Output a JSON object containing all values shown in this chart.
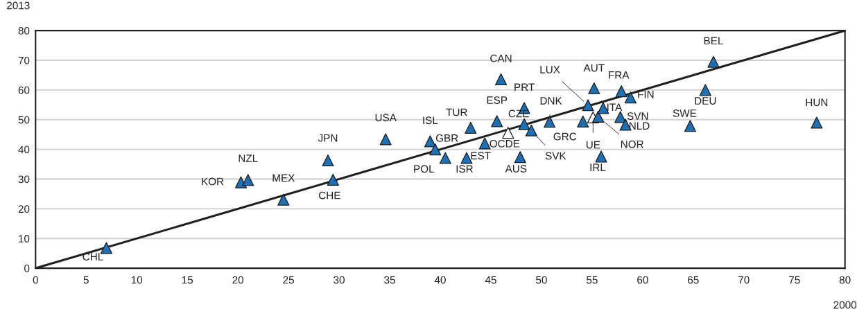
{
  "chart_data": {
    "type": "scatter",
    "xlabel": "2000",
    "ylabel": "2013",
    "xlim": [
      0,
      80
    ],
    "ylim": [
      0,
      80
    ],
    "xticks": [
      0,
      5,
      10,
      15,
      20,
      25,
      30,
      35,
      40,
      45,
      50,
      55,
      60,
      65,
      70,
      75,
      80
    ],
    "yticks": [
      0,
      10,
      20,
      30,
      40,
      50,
      60,
      70,
      80
    ],
    "grid": "y",
    "marker": "triangle",
    "series": [
      {
        "x": [
          7.0,
          20.3,
          21.0,
          24.5,
          28.9,
          29.4,
          34.6,
          39.0,
          39.5,
          40.5,
          43.0,
          45.6,
          42.6,
          44.4,
          46.7,
          47.9,
          48.3,
          48.3,
          49.0,
          50.8,
          46.0,
          54.1,
          55.1,
          55.6,
          54.6,
          56.1,
          55.2,
          57.9,
          58.8,
          57.8,
          58.3,
          55.9,
          64.7,
          66.2,
          67.0,
          77.2
        ],
        "values": [
          6.8,
          28.9,
          29.7,
          23.1,
          36.3,
          29.8,
          43.4,
          42.7,
          40.0,
          37.1,
          47.3,
          49.5,
          37.1,
          42.0,
          45.6,
          37.4,
          48.5,
          53.9,
          46.4,
          49.3,
          63.6,
          49.4,
          50.8,
          51.0,
          54.9,
          53.9,
          60.6,
          59.6,
          57.5,
          50.9,
          48.3,
          37.6,
          47.9,
          60.0,
          69.5,
          49.0
        ],
        "colors": [
          "#1f6fb4",
          "#1f6fb4",
          "#1f6fb4",
          "#1f6fb4",
          "#1f6fb4",
          "#1f6fb4",
          "#1f6fb4",
          "#1f6fb4",
          "#1f6fb4",
          "#1f6fb4",
          "#1f6fb4",
          "#1f6fb4",
          "#1f6fb4",
          "#1f6fb4",
          "#ffffff",
          "#1f6fb4",
          "#1f6fb4",
          "#1f6fb4",
          "#1f6fb4",
          "#1f6fb4",
          "#1f6fb4",
          "#1f6fb4",
          "#ffffff",
          "#1f6fb4",
          "#1f6fb4",
          "#1f6fb4",
          "#1f6fb4",
          "#1f6fb4",
          "#1f6fb4",
          "#1f6fb4",
          "#1f6fb4",
          "#1f6fb4",
          "#1f6fb4",
          "#1f6fb4",
          "#1f6fb4",
          "#1f6fb4"
        ]
      },
      {
        "type": "line",
        "color": "#231f20",
        "x": [
          0,
          80
        ],
        "values": [
          0,
          80
        ],
        "marker": "none"
      }
    ],
    "annotations": [
      {
        "text": "CHL",
        "x": 7.0,
        "y": 6.8
      },
      {
        "text": "KOR",
        "x": 20.3,
        "y": 28.9
      },
      {
        "text": "NZL",
        "x": 21.0,
        "y": 29.7
      },
      {
        "text": "MEX",
        "x": 24.5,
        "y": 23.1
      },
      {
        "text": "JPN",
        "x": 28.9,
        "y": 36.3
      },
      {
        "text": "CHE",
        "x": 29.4,
        "y": 29.8
      },
      {
        "text": "USA",
        "x": 34.6,
        "y": 43.4
      },
      {
        "text": "ISL",
        "x": 39.0,
        "y": 42.7
      },
      {
        "text": "GBR",
        "x": 39.5,
        "y": 40.0
      },
      {
        "text": "POL",
        "x": 40.5,
        "y": 37.1
      },
      {
        "text": "TUR",
        "x": 43.0,
        "y": 47.3
      },
      {
        "text": "ESP",
        "x": 45.6,
        "y": 49.5
      },
      {
        "text": "ISR",
        "x": 42.6,
        "y": 37.1
      },
      {
        "text": "EST",
        "x": 44.4,
        "y": 42.0
      },
      {
        "text": "OCDE",
        "x": 46.7,
        "y": 45.6
      },
      {
        "text": "AUS",
        "x": 47.9,
        "y": 37.4
      },
      {
        "text": "CZE",
        "x": 48.3,
        "y": 48.5
      },
      {
        "text": "PRT",
        "x": 48.3,
        "y": 53.9
      },
      {
        "text": "SVK",
        "x": 49.0,
        "y": 46.4
      },
      {
        "text": "DNK",
        "x": 50.8,
        "y": 49.3
      },
      {
        "text": "CAN",
        "x": 46.0,
        "y": 63.6
      },
      {
        "text": "GRC",
        "x": 54.1,
        "y": 49.4
      },
      {
        "text": "UE",
        "x": 55.1,
        "y": 50.8
      },
      {
        "text": "NOR",
        "x": 55.6,
        "y": 51.0
      },
      {
        "text": "LUX",
        "x": 54.6,
        "y": 54.9
      },
      {
        "text": "ITA",
        "x": 56.1,
        "y": 53.9
      },
      {
        "text": "AUT",
        "x": 55.2,
        "y": 60.6
      },
      {
        "text": "FRA",
        "x": 57.9,
        "y": 59.6
      },
      {
        "text": "FIN",
        "x": 58.8,
        "y": 57.5
      },
      {
        "text": "SVN",
        "x": 57.8,
        "y": 50.9
      },
      {
        "text": "NLD",
        "x": 58.3,
        "y": 48.3
      },
      {
        "text": "IRL",
        "x": 55.9,
        "y": 37.6
      },
      {
        "text": "SWE",
        "x": 64.7,
        "y": 47.9
      },
      {
        "text": "DEU",
        "x": 66.2,
        "y": 60.0
      },
      {
        "text": "BEL",
        "x": 67.0,
        "y": 69.5
      },
      {
        "text": "HUN",
        "x": 77.2,
        "y": 49.0
      }
    ]
  }
}
